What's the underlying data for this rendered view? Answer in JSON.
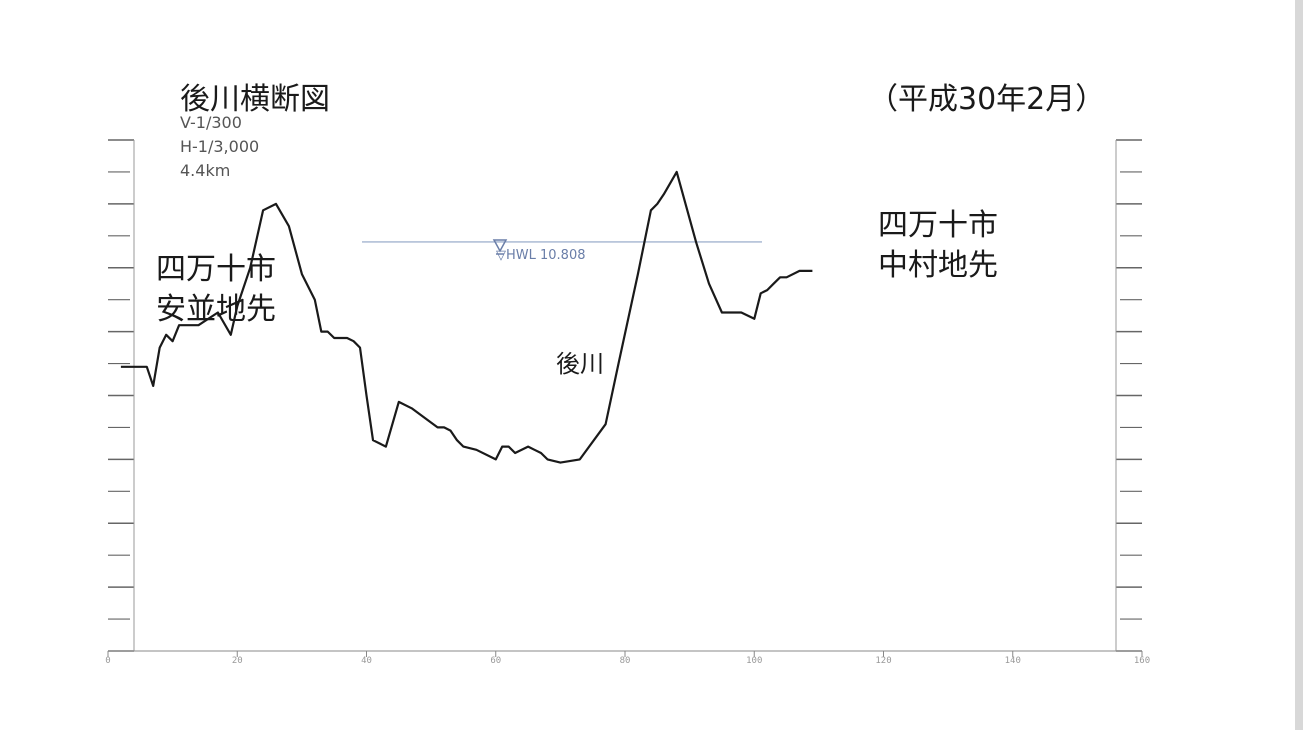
{
  "header": {
    "title": "後川横断図",
    "date": "（平成30年2月）",
    "scale_v": "V-1/300",
    "scale_h": "H-1/3,000",
    "distance": "4.4km"
  },
  "labels": {
    "left_bank_line1": "四万十市",
    "left_bank_line2": "安並地先",
    "right_bank_line1": "四万十市",
    "right_bank_line2": "中村地先",
    "river_name": "後川",
    "water_level": "▽HWL 10.808"
  },
  "colors": {
    "profile": "#1a1a1a",
    "water_line": "#8fa3c5",
    "grid_tick": "#666666"
  },
  "chart_data": {
    "type": "line",
    "xlabel": "",
    "ylabel": "",
    "xlim": [
      0,
      160
    ],
    "ylim": [
      -2,
      14
    ],
    "x_ticks": [
      0,
      20,
      40,
      60,
      80,
      100,
      120,
      140,
      160
    ],
    "water_level": 10.808,
    "series": [
      {
        "x": [
          2,
          6,
          7,
          8,
          9,
          10,
          11,
          14,
          17,
          19,
          20,
          22,
          24,
          26,
          28,
          30,
          32,
          33,
          34,
          35,
          37,
          38,
          39,
          40,
          41,
          43,
          45,
          47,
          49,
          51,
          52,
          53,
          54,
          55,
          57,
          60,
          61,
          62,
          63,
          65,
          66,
          67,
          68,
          70,
          73,
          77,
          79,
          82,
          84,
          85,
          86,
          88,
          91,
          93,
          95,
          98,
          100,
          101,
          102,
          103,
          104,
          105,
          107,
          109
        ],
        "y": [
          6.9,
          6.9,
          6.3,
          7.5,
          7.9,
          7.7,
          8.2,
          8.2,
          8.6,
          7.9,
          8.8,
          10.0,
          11.8,
          12.0,
          11.3,
          9.8,
          9.0,
          8.0,
          8.0,
          7.8,
          7.8,
          7.7,
          7.5,
          6.0,
          4.6,
          4.4,
          5.8,
          5.6,
          5.3,
          5.0,
          5.0,
          4.9,
          4.6,
          4.4,
          4.3,
          4.0,
          4.4,
          4.4,
          4.2,
          4.4,
          4.3,
          4.2,
          4.0,
          3.9,
          4.0,
          5.1,
          7.0,
          9.8,
          11.8,
          12.0,
          12.3,
          13.0,
          10.8,
          9.5,
          8.6,
          8.6,
          8.4,
          9.2,
          9.3,
          9.5,
          9.7,
          9.7,
          9.9,
          9.9
        ]
      }
    ]
  }
}
